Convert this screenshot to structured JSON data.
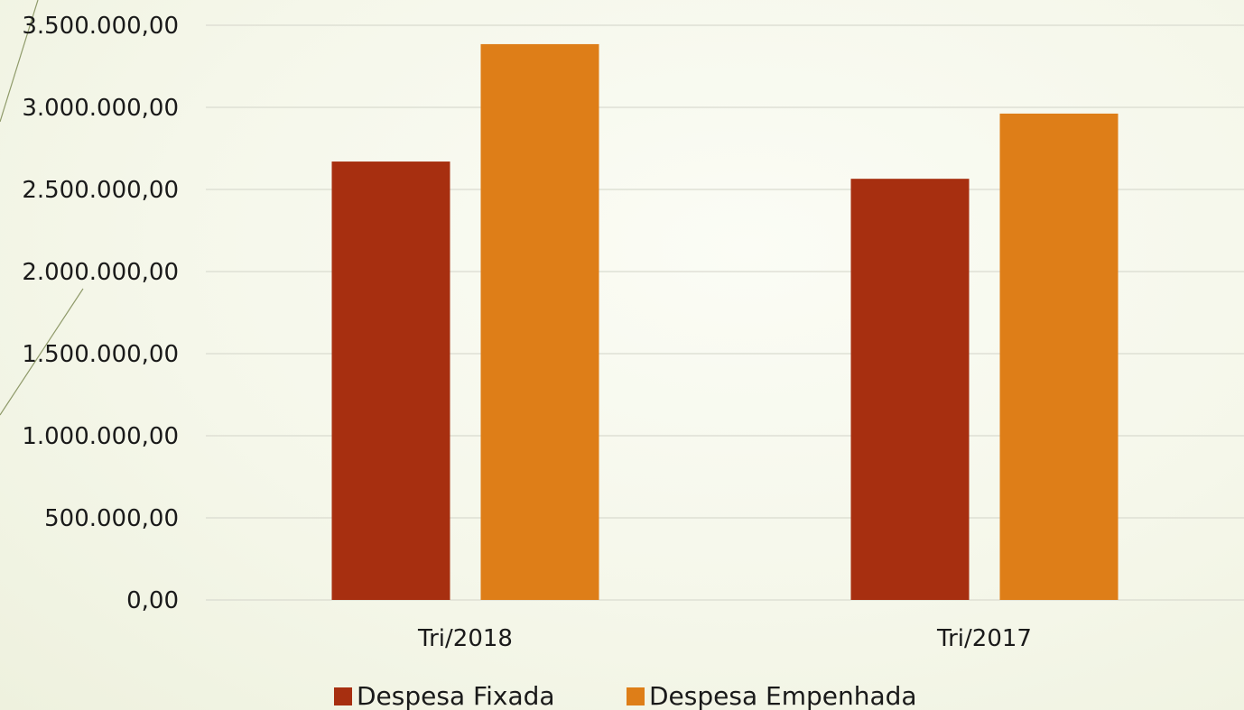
{
  "colors": {
    "series_1": "#a72f10",
    "series_2": "#de7e18",
    "gridline": "#d9dbd0",
    "axis_text": "#1a1a1a",
    "decor_line": "#8f9a6a"
  },
  "chart_data": {
    "type": "bar",
    "categories": [
      "Tri/2018",
      "Tri/2017"
    ],
    "series": [
      {
        "name": "Despesa Fixada",
        "values": [
          2670000,
          2565000
        ],
        "color": "#a72f10"
      },
      {
        "name": "Despesa Empenhada",
        "values": [
          3385000,
          2962000
        ],
        "color": "#de7e18"
      }
    ],
    "ylim": [
      0,
      3500000
    ],
    "y_ticks": [
      0,
      500000,
      1000000,
      1500000,
      2000000,
      2500000,
      3000000,
      3500000
    ],
    "y_tick_labels": [
      "0,00",
      "500.000,00",
      "1.000.000,00",
      "1.500.000,00",
      "2.000.000,00",
      "2.500.000,00",
      "3.000.000,00",
      "3.500.000,00"
    ],
    "grid": true,
    "legend_position": "bottom"
  }
}
